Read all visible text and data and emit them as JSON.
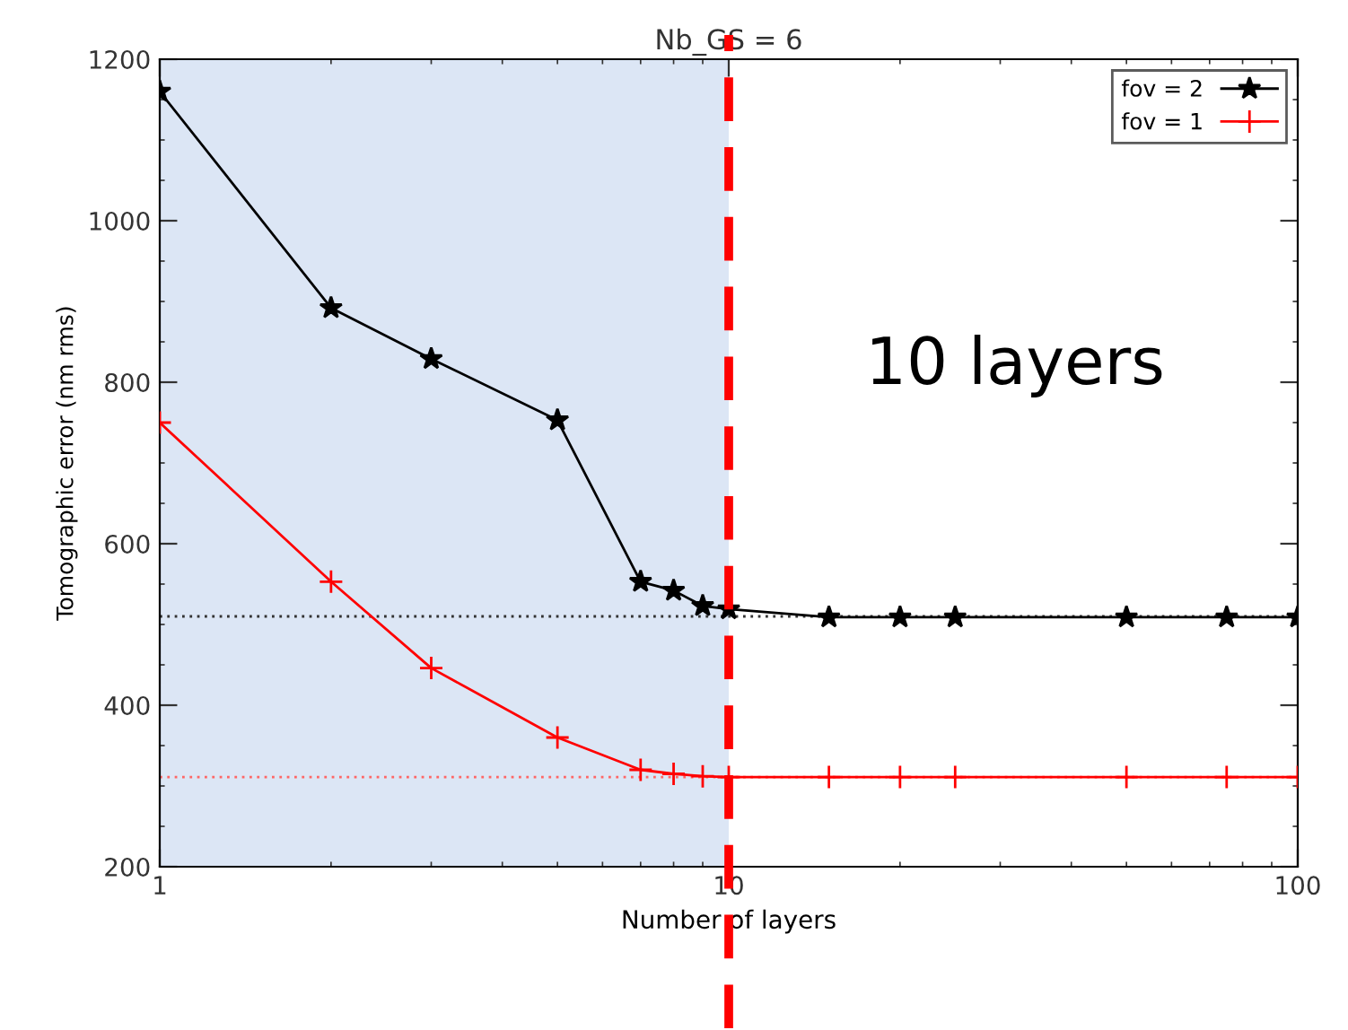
{
  "chart_data": {
    "type": "line",
    "title": "Nb_GS = 6",
    "xlabel": "Number of layers",
    "ylabel": "Tomographic error (nm rms)",
    "log": "x",
    "xlim": [
      1,
      100
    ],
    "xticks": [
      1,
      10,
      100
    ],
    "ylim": [
      200,
      1200
    ],
    "yticks": [
      200,
      400,
      600,
      800,
      1000,
      1200
    ],
    "grid": false,
    "legend": "top right",
    "series": [
      {
        "name": "fov = 2",
        "color": "#000000",
        "marker": "star",
        "x": [
          1,
          2,
          3,
          5,
          7,
          8,
          9,
          10,
          15,
          20,
          25,
          50,
          75,
          100
        ],
        "values": [
          1160,
          892,
          829,
          753,
          553,
          542,
          523,
          519,
          509,
          509,
          509,
          509,
          509,
          509
        ]
      },
      {
        "name": "fov = 1",
        "color": "#ff0000",
        "marker": "cross",
        "x": [
          1,
          2,
          3,
          5,
          7,
          8,
          9,
          10,
          15,
          20,
          25,
          50,
          75,
          100
        ],
        "values": [
          750,
          553,
          446,
          360,
          320,
          315,
          312,
          311,
          311,
          311,
          311,
          311,
          311,
          311
        ]
      }
    ],
    "ref_lines": [
      {
        "axis": "y",
        "value": 510,
        "color": "#333333",
        "line_style": "dotted"
      },
      {
        "axis": "y",
        "value": 311,
        "color": "#ff6666",
        "line_style": "dotted"
      },
      {
        "axis": "x",
        "value": 10,
        "color": "#ff0000",
        "line_style": "dashed"
      }
    ],
    "bands": [
      {
        "axis": "x",
        "from": 1,
        "to": 10,
        "color": "#dce6f5"
      }
    ],
    "annotations": [
      "10 layers"
    ]
  }
}
